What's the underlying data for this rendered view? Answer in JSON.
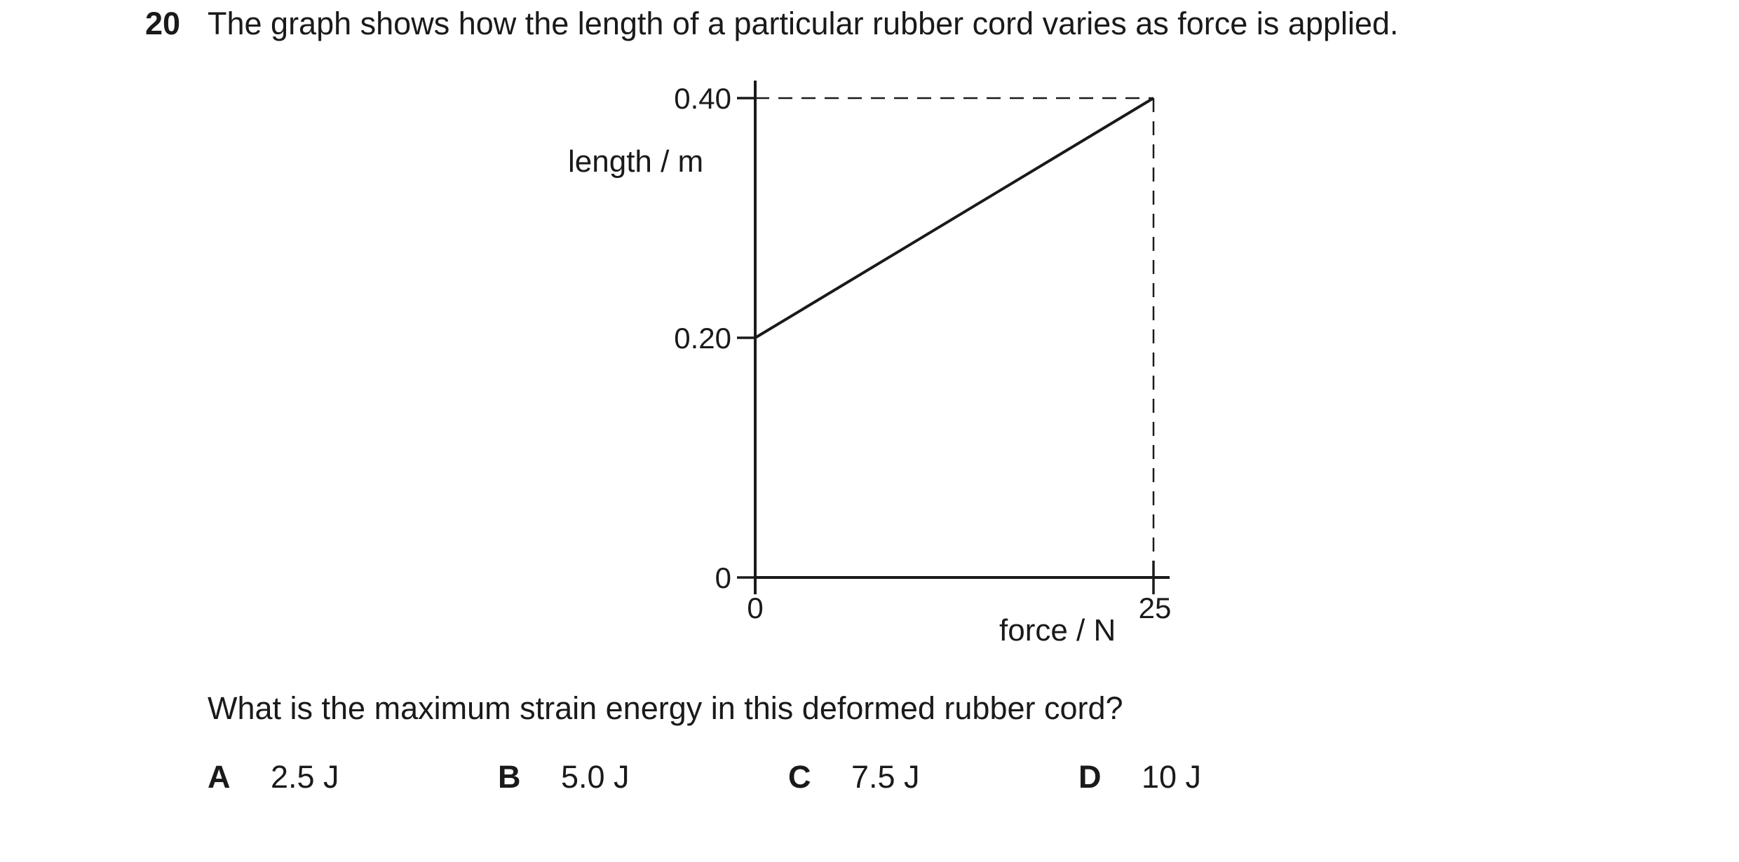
{
  "question": {
    "number": "20",
    "stem": "The graph shows how the length of a particular rubber cord varies as force is applied.",
    "prompt": "What is the maximum strain energy in this deformed rubber cord?",
    "options": [
      {
        "letter": "A",
        "text": "2.5 J"
      },
      {
        "letter": "B",
        "text": "5.0 J"
      },
      {
        "letter": "C",
        "text": "7.5 J"
      },
      {
        "letter": "D",
        "text": "10 J"
      }
    ]
  },
  "chart_data": {
    "type": "line",
    "xlabel": "force / N",
    "ylabel": "length / m",
    "xlim": [
      0,
      25
    ],
    "ylim": [
      0,
      0.4
    ],
    "x_ticks": [
      "0",
      "25"
    ],
    "y_ticks": [
      "0",
      "0.20",
      "0.40"
    ],
    "series": [
      {
        "x": [
          0,
          25
        ],
        "y": [
          0.2,
          0.4
        ]
      }
    ],
    "guide_lines": "dashed lines from the end point (25, 0.40) to both axes",
    "grid": false
  }
}
